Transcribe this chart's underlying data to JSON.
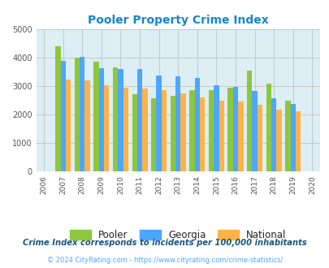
{
  "title": "Pooler Property Crime Index",
  "years": [
    2006,
    2007,
    2008,
    2009,
    2010,
    2011,
    2012,
    2013,
    2014,
    2015,
    2016,
    2017,
    2018,
    2019,
    2020
  ],
  "pooler": [
    null,
    4420,
    4010,
    3870,
    3660,
    2720,
    2590,
    2660,
    2870,
    2870,
    2950,
    3550,
    3090,
    2500,
    null
  ],
  "georgia": [
    null,
    3900,
    4030,
    3650,
    3610,
    3620,
    3390,
    3340,
    3280,
    3040,
    2980,
    2850,
    2570,
    2370,
    null
  ],
  "national": [
    null,
    3240,
    3200,
    3040,
    2960,
    2920,
    2870,
    2760,
    2610,
    2490,
    2460,
    2340,
    2190,
    2130,
    null
  ],
  "pooler_color": "#8dc63f",
  "georgia_color": "#4da6ff",
  "national_color": "#ffb347",
  "bg_color": "#ddeef5",
  "ylim": [
    0,
    5000
  ],
  "yticks": [
    0,
    1000,
    2000,
    3000,
    4000,
    5000
  ],
  "legend_labels": [
    "Pooler",
    "Georgia",
    "National"
  ],
  "footnote1": "Crime Index corresponds to incidents per 100,000 inhabitants",
  "footnote2": "© 2024 CityRating.com - https://www.cityrating.com/crime-statistics/",
  "title_color": "#1a85c8",
  "footnote1_color": "#1a5580",
  "footnote2_color": "#4da6ff",
  "bar_width": 0.27,
  "xlim_left": 2005.6,
  "xlim_right": 2020.4
}
